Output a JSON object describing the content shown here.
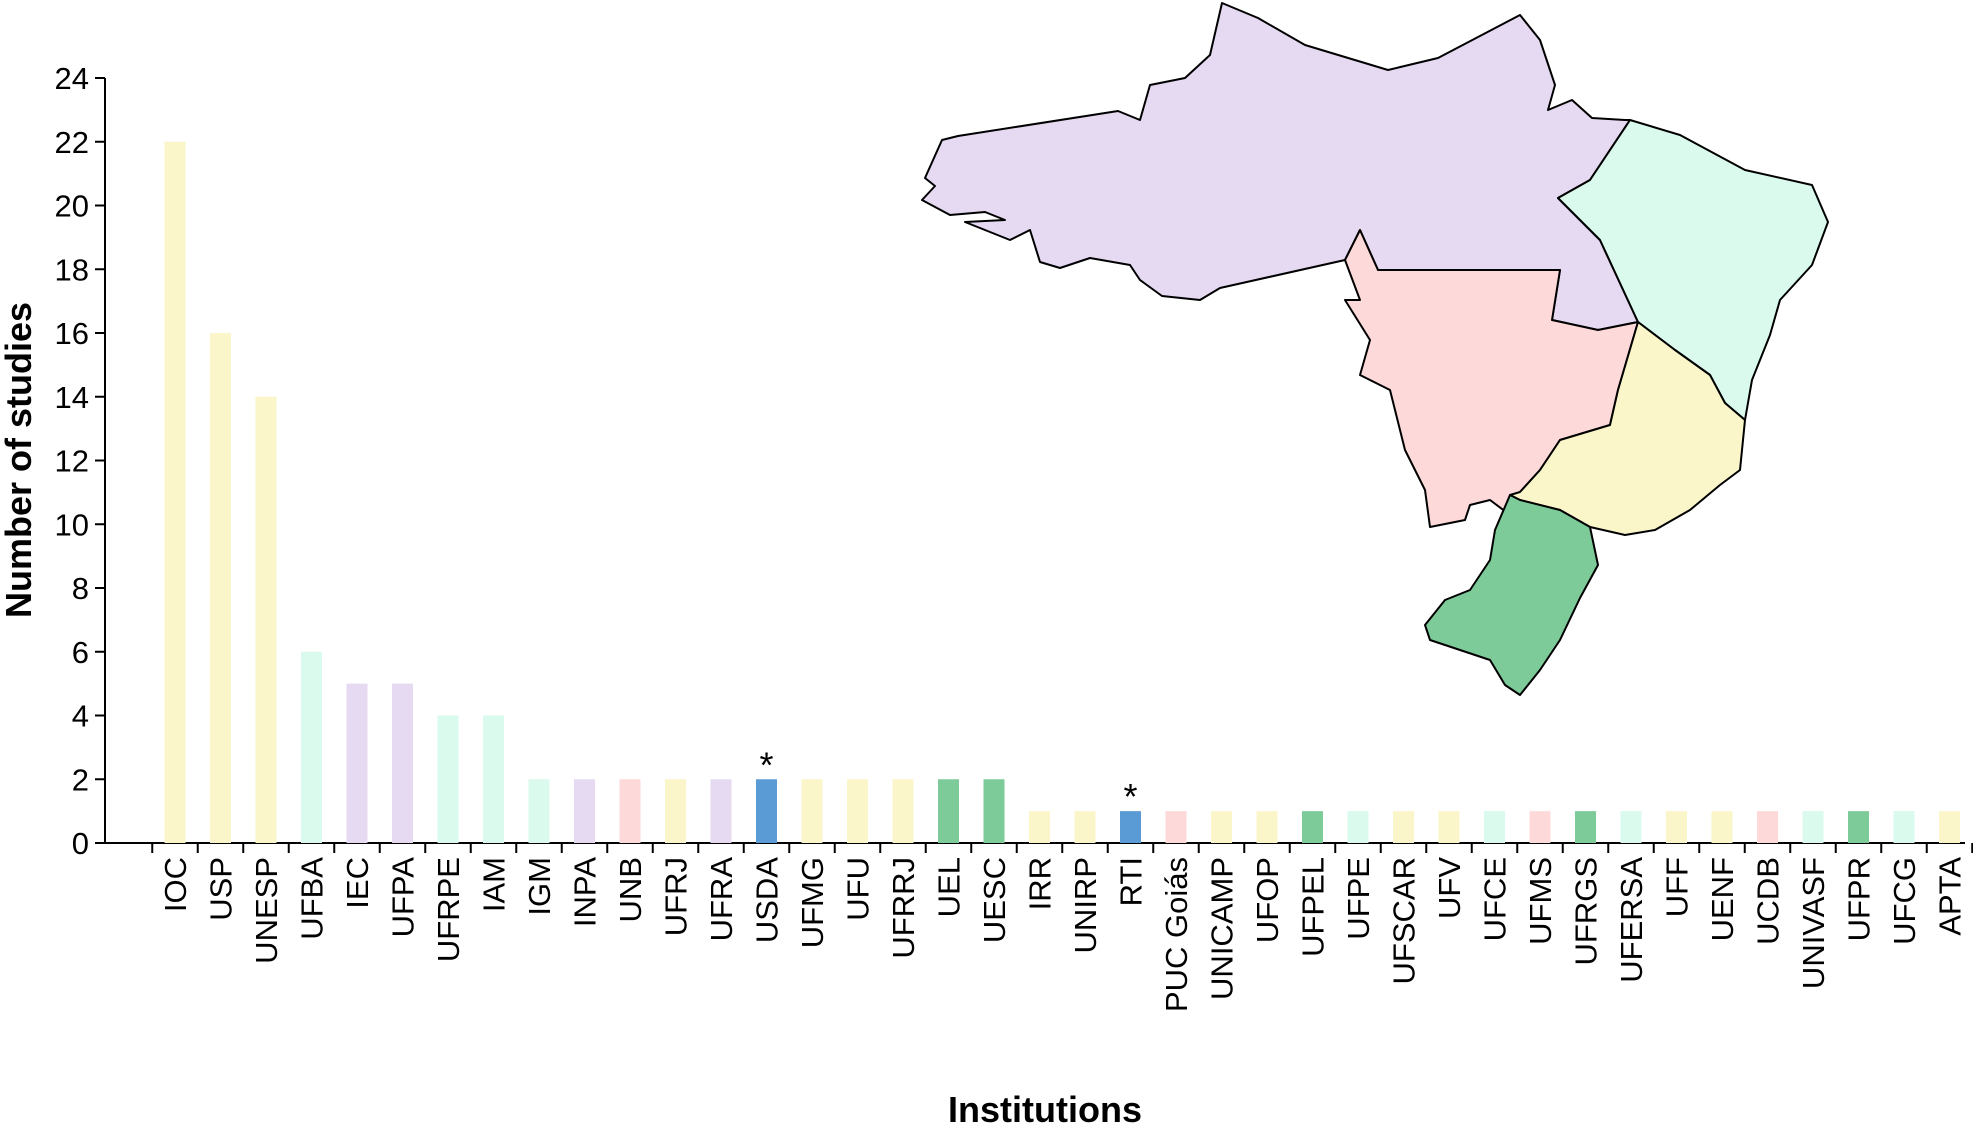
{
  "chart_data": {
    "type": "bar",
    "title": "",
    "xlabel": "Institutions",
    "ylabel": "Number of studies",
    "ylim": [
      0,
      24
    ],
    "yticks": [
      0,
      2,
      4,
      6,
      8,
      10,
      12,
      14,
      16,
      18,
      20,
      22,
      24
    ],
    "grid": false,
    "legend": "none",
    "region_colors": {
      "north": "#e6d9f2",
      "northeast": "#d9faec",
      "central_west": "#fdd9d9",
      "southeast": "#fbf6c9",
      "south": "#7ecb9a",
      "foreign": "#5b9bd5"
    },
    "categories": [
      "IOC",
      "USP",
      "UNESP",
      "UFBA",
      "IEC",
      "UFPA",
      "UFRPE",
      "IAM",
      "IGM",
      "INPA",
      "UNB",
      "UFRJ",
      "UFRA",
      "USDA",
      "UFMG",
      "UFU",
      "UFRRJ",
      "UEL",
      "UESC",
      "IRR",
      "UNIRP",
      "RTI",
      "PUC Goiás",
      "UNICAMP",
      "UFOP",
      "UFPEL",
      "UFPE",
      "UFSCAR",
      "UFV",
      "UFCE",
      "UFMS",
      "UFRGS",
      "UFERSA",
      "UFF",
      "UENF",
      "UCDB",
      "UNIVASF",
      "UFPR",
      "UFCG",
      "APTA"
    ],
    "values": [
      22,
      16,
      14,
      6,
      5,
      5,
      4,
      4,
      2,
      2,
      2,
      2,
      2,
      2,
      2,
      2,
      2,
      2,
      2,
      1,
      1,
      1,
      1,
      1,
      1,
      1,
      1,
      1,
      1,
      1,
      1,
      1,
      1,
      1,
      1,
      1,
      1,
      1,
      1,
      1
    ],
    "bar_regions": [
      "southeast",
      "southeast",
      "southeast",
      "northeast",
      "north",
      "north",
      "northeast",
      "northeast",
      "northeast",
      "north",
      "central_west",
      "southeast",
      "north",
      "foreign",
      "southeast",
      "southeast",
      "southeast",
      "south",
      "south",
      "southeast",
      "southeast",
      "foreign",
      "central_west",
      "southeast",
      "southeast",
      "south",
      "northeast",
      "southeast",
      "southeast",
      "northeast",
      "central_west",
      "south",
      "northeast",
      "southeast",
      "southeast",
      "central_west",
      "northeast",
      "south",
      "northeast",
      "southeast"
    ],
    "annotations": [
      {
        "category": "USDA",
        "text": "*"
      },
      {
        "category": "RTI",
        "text": "*"
      }
    ],
    "inset_map": {
      "subject": "Brazil regions",
      "regions": [
        "north",
        "northeast",
        "central_west",
        "southeast",
        "south"
      ]
    }
  }
}
